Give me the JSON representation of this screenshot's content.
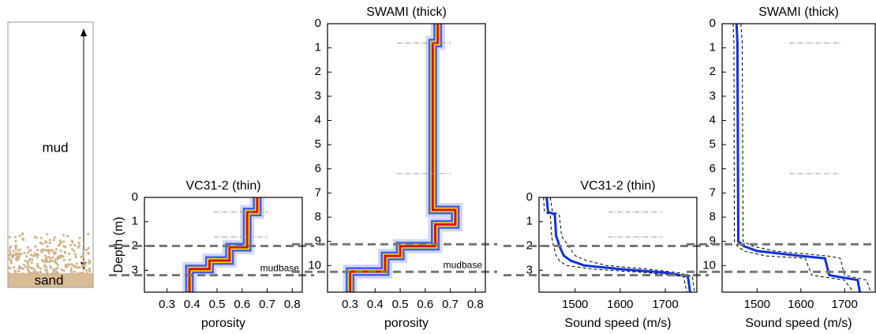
{
  "schematic": {
    "top_label": "mud",
    "bottom_label": "sand",
    "dot_color": "#d2b48c",
    "sand_color": "#d9bc96"
  },
  "chart_data": [
    {
      "type": "density_profile",
      "title": "VC31-2 (thin)",
      "xlabel": "porosity",
      "ylabel": "Depth (m)",
      "xlim": [
        0.21,
        0.84
      ],
      "xticks": [
        0.3,
        0.4,
        0.5,
        0.6,
        0.7,
        0.8
      ],
      "ylim": [
        0,
        3.9
      ],
      "yticks": [
        0,
        1,
        2,
        3
      ],
      "y_inverted": true,
      "colors": [
        "#c8ccf4",
        "#4060e8",
        "#f0e020",
        "#d81010"
      ],
      "depth": [
        0,
        0.6,
        0.6,
        2.05,
        2.05,
        2.6,
        2.6,
        2.95,
        2.95,
        3.9
      ],
      "values": [
        0.66,
        0.66,
        0.62,
        0.62,
        0.55,
        0.55,
        0.47,
        0.47,
        0.39,
        0.39
      ],
      "boundaries": [
        2.0,
        3.2
      ],
      "layer_marks": [
        0.6,
        1.63
      ],
      "annotation": "mudbase"
    },
    {
      "type": "density_profile",
      "title": "SWAMI (thick)",
      "xlabel": "porosity",
      "xlim": [
        0.21,
        0.84
      ],
      "xticks": [
        0.3,
        0.4,
        0.5,
        0.6,
        0.7,
        0.8
      ],
      "ylim": [
        0,
        11.1
      ],
      "yticks": [
        0,
        1,
        2,
        3,
        4,
        5,
        6,
        7,
        8,
        9,
        10
      ],
      "y_inverted": true,
      "colors": [
        "#c8ccf4",
        "#4060e8",
        "#f0e020",
        "#d81010"
      ],
      "depth": [
        0,
        0.8,
        0.8,
        7.7,
        7.7,
        8.3,
        8.3,
        9.2,
        9.2,
        9.6,
        9.6,
        10.25,
        10.25,
        11.1
      ],
      "values": [
        0.65,
        0.65,
        0.63,
        0.63,
        0.72,
        0.72,
        0.64,
        0.64,
        0.5,
        0.5,
        0.44,
        0.44,
        0.3,
        0.3
      ],
      "boundaries": [
        9.12,
        10.26
      ],
      "layer_marks": [
        0.8,
        6.2
      ],
      "annotation": "mudbase"
    },
    {
      "type": "line_profile",
      "title": "VC31-2 (thin)",
      "xlabel": "Sound speed (m/s)",
      "xlim": [
        1420,
        1770
      ],
      "xticks": [
        1500,
        1600,
        1700
      ],
      "ylim": [
        0,
        3.9
      ],
      "yticks": [
        0,
        1,
        2,
        3
      ],
      "y_inverted": true,
      "depth": [
        0,
        0.6,
        0.7,
        1.6,
        1.8,
        2.0,
        2.4,
        2.6,
        2.8,
        2.95,
        3.1,
        3.25,
        3.9
      ],
      "series": [
        {
          "color": "#1030e0",
          "values": [
            1437,
            1440,
            1455,
            1458,
            1462,
            1465,
            1475,
            1490,
            1520,
            1600,
            1700,
            1750,
            1755
          ]
        },
        {
          "color": "#000000",
          "dashed": true,
          "values": [
            1430,
            1432,
            1445,
            1448,
            1450,
            1452,
            1458,
            1465,
            1480,
            1540,
            1660,
            1740,
            1748
          ]
        },
        {
          "color": "#000000",
          "dashed": true,
          "values": [
            1445,
            1450,
            1465,
            1470,
            1478,
            1485,
            1500,
            1525,
            1570,
            1660,
            1730,
            1760,
            1765
          ]
        }
      ],
      "boundaries": [
        2.0,
        3.2
      ],
      "layer_marks": [
        0.6,
        1.63
      ]
    },
    {
      "type": "line_profile",
      "title": "SWAMI (thick)",
      "xlabel": "Sound speed (m/s)",
      "xlim": [
        1420,
        1770
      ],
      "xticks": [
        1500,
        1600,
        1700
      ],
      "ylim": [
        0,
        11.1
      ],
      "yticks": [
        0,
        1,
        2,
        3,
        4,
        5,
        6,
        7,
        8,
        9,
        10
      ],
      "y_inverted": true,
      "depth": [
        0,
        0.8,
        9.0,
        9.2,
        9.4,
        9.6,
        9.7,
        10.4,
        10.6,
        11.1
      ],
      "series": [
        {
          "color": "#1030e0",
          "values": [
            1453,
            1455,
            1457,
            1470,
            1500,
            1600,
            1655,
            1665,
            1730,
            1735
          ]
        },
        {
          "color": "#000000",
          "dashed": true,
          "values": [
            1445,
            1447,
            1448,
            1455,
            1470,
            1520,
            1610,
            1625,
            1700,
            1720
          ]
        },
        {
          "color": "#000000",
          "dashed": true,
          "values": [
            1463,
            1466,
            1468,
            1490,
            1540,
            1660,
            1690,
            1700,
            1750,
            1760
          ]
        }
      ],
      "boundaries": [
        9.12,
        10.26
      ],
      "layer_marks": [
        0.8,
        6.2
      ]
    }
  ]
}
